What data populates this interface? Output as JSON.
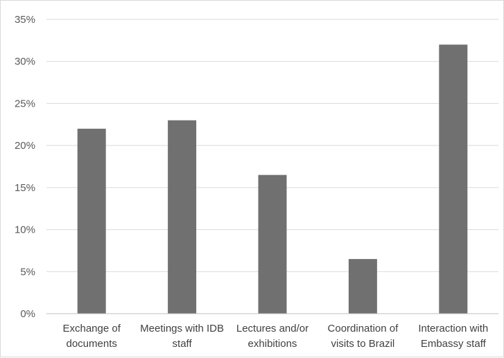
{
  "chart_data": {
    "type": "bar",
    "title": "",
    "xlabel": "",
    "ylabel": "",
    "categories": [
      [
        "Exchange of",
        "documents"
      ],
      [
        "Meetings with IDB",
        "staff"
      ],
      [
        "Lectures and/or",
        "exhibitions"
      ],
      [
        "Coordination of",
        "visits to Brazil"
      ],
      [
        "Interaction with",
        "Embassy staff"
      ]
    ],
    "values": [
      22,
      23,
      16.5,
      6.5,
      32
    ],
    "value_format": "percent",
    "ylim": [
      0,
      35
    ],
    "yticks": [
      "0%",
      "5%",
      "10%",
      "15%",
      "20%",
      "25%",
      "30%",
      "35%"
    ],
    "grid": true,
    "legend": "none",
    "colors": {
      "bar": "#707070",
      "grid": "#d9d9d9",
      "axis": "#bfbfbf"
    }
  }
}
